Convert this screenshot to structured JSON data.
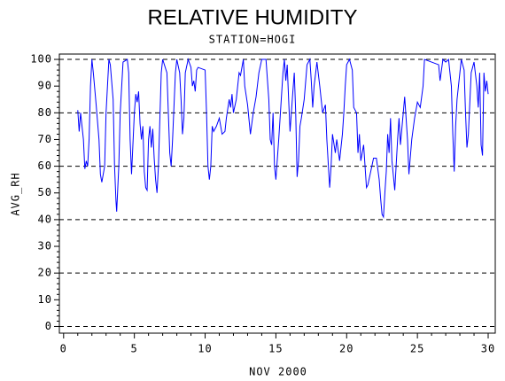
{
  "chart_data": {
    "type": "line",
    "title": "RELATIVE HUMIDITY",
    "subtitle": "STATION=HOGI",
    "x_label": "NOV 2000",
    "y_label": "AVG_RH",
    "xlim": [
      -0.3,
      30.5
    ],
    "ylim": [
      -2.5,
      102
    ],
    "xticks": [
      0,
      5,
      10,
      15,
      20,
      25,
      30
    ],
    "yticks": [
      0,
      10,
      20,
      30,
      40,
      50,
      60,
      70,
      80,
      90,
      100
    ],
    "y_grid": [
      0,
      20,
      40,
      60,
      80,
      100
    ],
    "series": [
      {
        "color": "#0000ff",
        "x": [
          1.0,
          1.1,
          1.2,
          1.4,
          1.5,
          1.6,
          1.7,
          1.8,
          1.9,
          2.0,
          2.1,
          2.3,
          2.5,
          2.6,
          2.7,
          2.9,
          3.0,
          3.2,
          3.3,
          3.5,
          3.6,
          3.7,
          3.75,
          3.9,
          4.0,
          4.2,
          4.5,
          4.6,
          4.7,
          4.8,
          5.0,
          5.1,
          5.2,
          5.3,
          5.4,
          5.5,
          5.6,
          5.7,
          5.8,
          5.9,
          6.0,
          6.1,
          6.2,
          6.3,
          6.4,
          6.5,
          6.6,
          6.7,
          6.9,
          7.0,
          7.3,
          7.5,
          7.6,
          7.7,
          7.9,
          8.0,
          8.2,
          8.3,
          8.4,
          8.5,
          8.6,
          8.8,
          9.0,
          9.1,
          9.2,
          9.3,
          9.4,
          9.5,
          10.0,
          10.1,
          10.2,
          10.3,
          10.4,
          10.5,
          10.6,
          10.8,
          11.0,
          11.2,
          11.4,
          11.5,
          11.7,
          11.8,
          11.9,
          12.0,
          12.2,
          12.4,
          12.5,
          12.7,
          12.8,
          13.0,
          13.2,
          13.4,
          13.6,
          13.8,
          14.0,
          14.3,
          14.5,
          14.6,
          14.7,
          14.8,
          14.9,
          15.0,
          15.2,
          15.5,
          15.6,
          15.7,
          15.8,
          15.9,
          16.0,
          16.2,
          16.3,
          16.4,
          16.5,
          16.6,
          16.7,
          16.8,
          17.0,
          17.2,
          17.4,
          17.5,
          17.6,
          17.7,
          17.9,
          18.1,
          18.3,
          18.5,
          18.6,
          18.8,
          18.9,
          19.0,
          19.2,
          19.3,
          19.5,
          19.7,
          19.8,
          19.9,
          20.0,
          20.2,
          20.4,
          20.5,
          20.7,
          20.8,
          20.9,
          21.0,
          21.2,
          21.4,
          21.5,
          21.7,
          21.9,
          22.1,
          22.3,
          22.4,
          22.5,
          22.6,
          22.7,
          22.8,
          22.9,
          23.0,
          23.1,
          23.2,
          23.4,
          23.6,
          23.7,
          23.8,
          24.0,
          24.1,
          24.3,
          24.4,
          24.6,
          24.8,
          25.0,
          25.2,
          25.4,
          25.5,
          26.0,
          26.5,
          26.6,
          26.8,
          27.0,
          27.2,
          27.4,
          27.5,
          27.6,
          27.7,
          27.8,
          28.0,
          28.1,
          28.3,
          28.4,
          28.5,
          28.6,
          28.8,
          29.0,
          29.2,
          29.3,
          29.4,
          29.5,
          29.6,
          29.7,
          29.8,
          29.9,
          30.0
        ],
        "values": [
          81,
          73,
          80,
          70,
          59,
          62,
          60,
          70,
          90,
          100,
          95,
          83,
          70,
          57,
          54,
          60,
          80,
          100,
          98,
          85,
          60,
          47,
          43,
          60,
          80,
          99,
          100,
          95,
          70,
          57,
          80,
          87,
          84,
          88,
          76,
          70,
          75,
          58,
          52,
          51,
          70,
          75,
          67,
          74,
          63,
          55,
          50,
          60,
          95,
          100,
          95,
          65,
          60,
          70,
          95,
          100,
          95,
          85,
          72,
          78,
          95,
          100,
          97,
          90,
          92,
          88,
          96,
          97,
          96,
          80,
          60,
          55,
          60,
          75,
          73,
          75,
          78,
          72,
          73,
          78,
          85,
          82,
          87,
          80,
          85,
          95,
          94,
          100,
          90,
          83,
          72,
          80,
          86,
          95,
          100,
          100,
          85,
          70,
          68,
          80,
          60,
          55,
          70,
          95,
          100,
          92,
          98,
          85,
          73,
          88,
          95,
          80,
          56,
          62,
          75,
          78,
          85,
          98,
          100,
          92,
          82,
          90,
          99,
          90,
          80,
          83,
          70,
          52,
          60,
          72,
          65,
          70,
          62,
          72,
          80,
          90,
          98,
          100,
          96,
          82,
          80,
          65,
          72,
          62,
          68,
          52,
          53,
          58,
          63,
          63,
          55,
          48,
          42,
          41,
          50,
          58,
          72,
          65,
          78,
          62,
          51,
          70,
          78,
          68,
          80,
          86,
          70,
          57,
          70,
          78,
          84,
          82,
          90,
          100,
          99,
          98,
          92,
          100,
          99,
          100,
          90,
          72,
          58,
          75,
          85,
          95,
          100,
          96,
          80,
          67,
          72,
          95,
          99,
          90,
          82,
          95,
          68,
          64,
          95,
          88,
          92,
          87
        ]
      }
    ]
  }
}
